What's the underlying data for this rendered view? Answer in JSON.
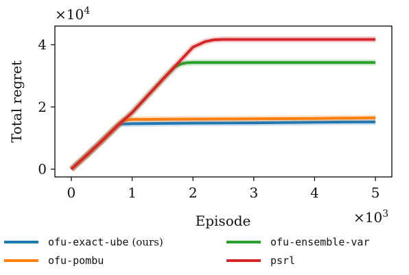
{
  "chart_data": {
    "type": "line",
    "title": "",
    "xlabel": "Episode",
    "ylabel": "Total regret",
    "x_multiplier": "×10",
    "x_multiplier_exp": "3",
    "y_multiplier": "×10",
    "y_multiplier_exp": "4",
    "xlim": [
      -0.27,
      5.27
    ],
    "ylim": [
      -0.25,
      4.6
    ],
    "x_ticks": [
      0,
      1,
      2,
      3,
      4,
      5
    ],
    "x_tick_labels": [
      "0",
      "1",
      "2",
      "3",
      "4",
      "5"
    ],
    "y_ticks": [
      0,
      2,
      4
    ],
    "y_tick_labels": [
      "0",
      "2",
      "4"
    ],
    "grid": false,
    "legend_position": "bottom",
    "series": [
      {
        "name": "ofu-exact-ube",
        "suffix": "(ours)",
        "color": "#1f77b4",
        "x": [
          0,
          0.25,
          0.5,
          0.75,
          0.8,
          1.0,
          2.0,
          3.0,
          4.0,
          5.0
        ],
        "y": [
          0,
          0.44,
          0.9,
          1.38,
          1.45,
          1.46,
          1.48,
          1.49,
          1.51,
          1.52
        ]
      },
      {
        "name": "ofu-ensemble-var",
        "suffix": "",
        "color": "#2ca02c",
        "x": [
          0,
          0.25,
          0.5,
          0.75,
          1.0,
          1.25,
          1.5,
          1.7,
          1.8,
          1.9,
          2.0,
          3.0,
          4.0,
          5.0
        ],
        "y": [
          0,
          0.44,
          0.9,
          1.38,
          1.82,
          2.35,
          2.88,
          3.28,
          3.38,
          3.42,
          3.43,
          3.43,
          3.43,
          3.43
        ]
      },
      {
        "name": "ofu-pombu",
        "suffix": "",
        "color": "#ff7f0e",
        "x": [
          0,
          0.25,
          0.5,
          0.75,
          0.85,
          1.0,
          2.0,
          3.0,
          4.0,
          5.0
        ],
        "y": [
          0,
          0.44,
          0.9,
          1.38,
          1.57,
          1.6,
          1.61,
          1.62,
          1.63,
          1.65
        ]
      },
      {
        "name": "psrl",
        "suffix": "",
        "color": "#d62728",
        "x": [
          0,
          0.25,
          0.5,
          0.75,
          1.0,
          1.25,
          1.5,
          1.75,
          2.0,
          2.2,
          2.35,
          2.5,
          3.0,
          4.0,
          5.0
        ],
        "y": [
          0,
          0.44,
          0.9,
          1.38,
          1.82,
          2.35,
          2.88,
          3.4,
          3.92,
          4.1,
          4.16,
          4.17,
          4.17,
          4.17,
          4.17
        ]
      }
    ]
  },
  "legend": {
    "items": [
      {
        "label": "ofu-exact-ube",
        "suffix": "(ours)",
        "color": "#1f77b4"
      },
      {
        "label": "ofu-ensemble-var",
        "suffix": "",
        "color": "#2ca02c"
      },
      {
        "label": "ofu-pombu",
        "suffix": "",
        "color": "#ff7f0e"
      },
      {
        "label": "psrl",
        "suffix": "",
        "color": "#d62728"
      }
    ]
  }
}
